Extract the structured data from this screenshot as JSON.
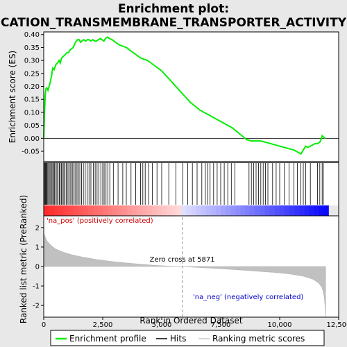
{
  "chart_data": {
    "type": "line",
    "title_lines": [
      "Enrichment plot:",
      "CATION_TRANSMEMBRANE_TRANSPORTER_ACTIVITY"
    ],
    "top_panel": {
      "ylabel": "Enrichment score (ES)",
      "ylim": [
        -0.09,
        0.41
      ],
      "yticks": [
        0.4,
        0.35,
        0.3,
        0.25,
        0.2,
        0.15,
        0.1,
        0.05,
        0.0,
        -0.05
      ],
      "ytick_labels": [
        "0.40",
        "0.35",
        "0.30",
        "0.25",
        "0.20",
        "0.15",
        "0.10",
        "0.05",
        "0.00",
        "-0.05"
      ],
      "series": [
        {
          "name": "Enrichment profile",
          "color": "#00ee00",
          "x": [
            0,
            30,
            60,
            90,
            130,
            180,
            260,
            330,
            380,
            440,
            520,
            580,
            650,
            700,
            760,
            820,
            880,
            930,
            990,
            1050,
            1110,
            1180,
            1250,
            1320,
            1380,
            1430,
            1500,
            1560,
            1620,
            1700,
            1780,
            1850,
            1920,
            1990,
            2080,
            2160,
            2240,
            2320,
            2400,
            2470,
            2550,
            2620,
            2700,
            2780,
            2900,
            3050,
            3200,
            3350,
            3500,
            3650,
            3800,
            3950,
            4100,
            4250,
            4400,
            4550,
            4700,
            4850,
            5000,
            5200,
            5400,
            5600,
            5800,
            6000,
            6200,
            6400,
            6600,
            6800,
            7000,
            7200,
            7400,
            7600,
            7800,
            8000,
            8200,
            8400,
            8600,
            8800,
            9000,
            9200,
            9400,
            9600,
            9800,
            10000,
            10200,
            10400,
            10600,
            10800,
            10900,
            11000,
            11100,
            11200,
            11300,
            11400,
            11500,
            11600,
            11700,
            11750,
            11800,
            11850,
            11950
          ],
          "y": [
            0.0,
            0.09,
            0.16,
            0.19,
            0.195,
            0.185,
            0.21,
            0.24,
            0.27,
            0.265,
            0.285,
            0.29,
            0.3,
            0.29,
            0.31,
            0.315,
            0.32,
            0.325,
            0.33,
            0.33,
            0.34,
            0.345,
            0.35,
            0.365,
            0.375,
            0.38,
            0.38,
            0.37,
            0.375,
            0.38,
            0.375,
            0.38,
            0.38,
            0.375,
            0.38,
            0.375,
            0.375,
            0.38,
            0.385,
            0.38,
            0.375,
            0.385,
            0.39,
            0.385,
            0.38,
            0.37,
            0.36,
            0.355,
            0.35,
            0.34,
            0.33,
            0.32,
            0.31,
            0.305,
            0.3,
            0.29,
            0.28,
            0.27,
            0.26,
            0.24,
            0.22,
            0.2,
            0.18,
            0.16,
            0.14,
            0.125,
            0.11,
            0.1,
            0.09,
            0.08,
            0.07,
            0.06,
            0.05,
            0.04,
            0.025,
            0.01,
            -0.005,
            -0.01,
            -0.01,
            -0.01,
            -0.015,
            -0.02,
            -0.025,
            -0.03,
            -0.035,
            -0.04,
            -0.045,
            -0.055,
            -0.06,
            -0.045,
            -0.03,
            -0.035,
            -0.03,
            -0.025,
            -0.02,
            -0.02,
            -0.015,
            -0.005,
            0.01,
            0.005,
            0.0
          ]
        }
      ]
    },
    "hits": [
      15,
      40,
      70,
      95,
      120,
      150,
      185,
      240,
      290,
      330,
      380,
      420,
      460,
      520,
      560,
      610,
      660,
      700,
      750,
      800,
      850,
      900,
      950,
      1000,
      1060,
      1120,
      1170,
      1230,
      1290,
      1350,
      1410,
      1470,
      1530,
      1600,
      1680,
      1760,
      1840,
      1920,
      2000,
      2100,
      2180,
      2260,
      2340,
      2420,
      2500,
      2560,
      2640,
      2720,
      2800,
      2950,
      3150,
      3350,
      3500,
      3700,
      3900,
      4100,
      4200,
      4300,
      4450,
      4600,
      4800,
      5000,
      5300,
      5600,
      5900,
      6100,
      6300,
      6500,
      6700,
      6850,
      6950,
      7050,
      7200,
      7350,
      7500,
      7650,
      7800,
      7950,
      8100,
      8700,
      8800,
      8900,
      9000,
      9100,
      9200,
      9300,
      9400,
      9500,
      9700,
      9850,
      10000,
      10200,
      10400,
      10600,
      10750,
      10900,
      11000,
      11100,
      11300,
      11600,
      11700,
      11800,
      11850
    ],
    "bottom_panel": {
      "ylabel": "Ranked list metric (PreRanked)",
      "xlabel": "Rank in Ordered Dataset",
      "xlim": [
        0,
        12500
      ],
      "ylim": [
        -2.6,
        2.6
      ],
      "xticks": [
        0,
        2500,
        5000,
        7500,
        10000,
        12500
      ],
      "xtick_labels": [
        "0",
        "2,500",
        "5,000",
        "7,500",
        "10,000",
        "12,500"
      ],
      "yticks": [
        2,
        1,
        0,
        -1,
        -2
      ],
      "ytick_labels": [
        "2",
        "1",
        "0",
        "-1",
        "-2"
      ],
      "metric_curve": {
        "x": [
          0,
          50,
          150,
          300,
          500,
          800,
          1200,
          1700,
          2300,
          3000,
          3800,
          4600,
          5300,
          5871,
          6500,
          7300,
          8100,
          8900,
          9700,
          10400,
          11000,
          11400,
          11650,
          11800,
          11880,
          11920,
          11950
        ],
        "y": [
          1.75,
          1.55,
          1.3,
          1.1,
          0.9,
          0.75,
          0.6,
          0.47,
          0.35,
          0.24,
          0.15,
          0.07,
          0.02,
          0.0,
          -0.05,
          -0.1,
          -0.16,
          -0.23,
          -0.3,
          -0.38,
          -0.5,
          -0.65,
          -0.85,
          -1.1,
          -1.5,
          -2.0,
          -2.6
        ]
      },
      "zero_cross_rank": 5871,
      "zero_cross_label": "Zero cross at 5871",
      "na_pos_label": "'na_pos' (positively correlated)",
      "na_neg_label": "'na_neg' (negatively correlated)",
      "na_pos_color": "#cc0000",
      "na_neg_color": "#0000cc"
    },
    "legend": {
      "position": "bottom",
      "entries": [
        {
          "label": "Enrichment profile",
          "color": "#00ee00"
        },
        {
          "label": "Hits",
          "color": "#000000"
        },
        {
          "label": "Ranking metric scores",
          "color": "#c8c8c8"
        }
      ]
    }
  }
}
